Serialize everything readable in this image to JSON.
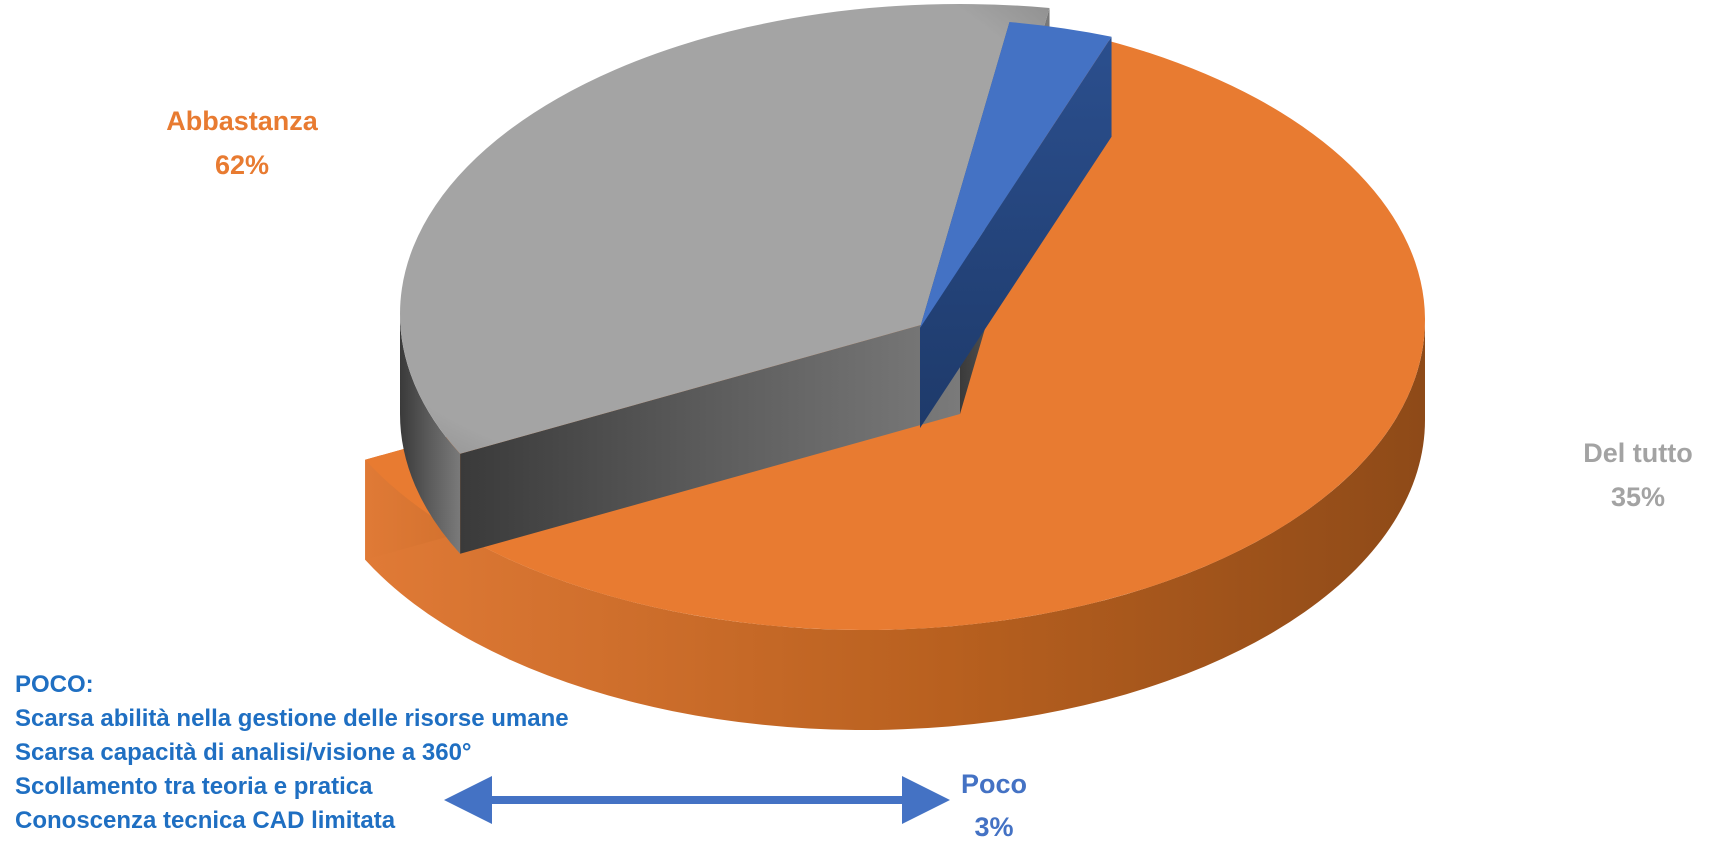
{
  "chart_data": {
    "type": "pie",
    "style": "3d-exploded",
    "title": "",
    "slices": [
      {
        "label": "Abbastanza",
        "value": 62,
        "value_label": "62%",
        "color": "#e87b31"
      },
      {
        "label": "Del tutto",
        "value": 35,
        "value_label": "35%",
        "color": "#a3a3a3"
      },
      {
        "label": "Poco",
        "value": 3,
        "value_label": "3%",
        "color": "#4472c4"
      }
    ]
  },
  "notes": {
    "heading": "POCO:",
    "items": [
      "Scarsa abilità nella gestione delle risorse umane",
      "Scarsa capacità di analisi/visione a 360°",
      "Scollamento tra teoria e pratica",
      "Conoscenza tecnica CAD limitata"
    ],
    "color": "#1f6fc2",
    "arrow_color": "#4472c4"
  }
}
